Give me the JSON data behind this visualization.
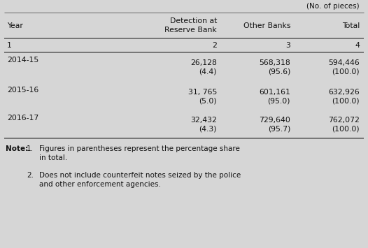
{
  "no_of_pieces_label": "(No. of pieces)",
  "col_headers_line1": [
    "Year",
    "Detection at",
    "Other Banks",
    "Total"
  ],
  "col_headers_line2": [
    "",
    "Reserve Bank",
    "",
    ""
  ],
  "col_numbers": [
    "1",
    "2",
    "3",
    "4"
  ],
  "rows": [
    [
      "2014-15",
      "26,128\n(4.4)",
      "568,318\n(95.6)",
      "594,446\n(100.0)"
    ],
    [
      "2015-16",
      "31, 765\n(5.0)",
      "601,161\n(95.0)",
      "632,926\n(100.0)"
    ],
    [
      "2016-17",
      "32,432\n(4.3)",
      "729,640\n(95.7)",
      "762,072\n(100.0)"
    ]
  ],
  "bg_color": "#d6d6d6",
  "line_color": "#666666",
  "text_color": "#111111",
  "font_size": 7.8,
  "note_font_size": 7.5
}
